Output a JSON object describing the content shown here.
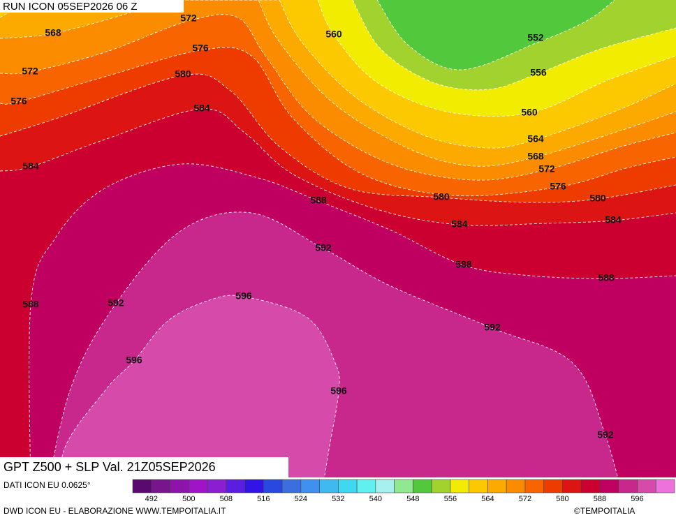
{
  "header": {
    "run": "RUN ICON 05SEP2026 06 Z"
  },
  "map": {
    "title": "GPT Z500 + SLP Val. 21Z05SEP2026",
    "contour_labels": [
      568,
      572,
      576,
      580,
      584,
      560,
      552,
      556,
      560,
      564,
      568,
      572,
      576,
      572,
      576,
      584,
      588,
      580,
      580,
      584,
      584,
      592,
      588,
      588,
      588,
      592,
      596,
      592,
      596,
      596,
      592
    ]
  },
  "footer": {
    "source": "DATI ICON EU 0.0625°",
    "credit": "DWD ICON EU - ELABORAZIONE WWW.TEMPOITALIA.IT",
    "copyright": "©TEMPOITALIA"
  },
  "colorbar": {
    "colors": [
      "#5a0a6e",
      "#78148c",
      "#8c14aa",
      "#a014c8",
      "#8c1ed2",
      "#5a1ee0",
      "#3214e6",
      "#2848e0",
      "#3c6ee0",
      "#4090f0",
      "#40b8f0",
      "#40d8f0",
      "#60f0f0",
      "#a8f0f0",
      "#90e890",
      "#52c83c",
      "#a2d22e",
      "#f2ec00",
      "#fcc800",
      "#fcaa00",
      "#fb8c00",
      "#f86400",
      "#ee3c00",
      "#dc1414",
      "#cc0030",
      "#c00060",
      "#c8288c",
      "#d64aaa",
      "#ee72dc"
    ],
    "labels": [
      492,
      500,
      508,
      516,
      524,
      532,
      540,
      548,
      556,
      564,
      572,
      580,
      588,
      596
    ]
  }
}
